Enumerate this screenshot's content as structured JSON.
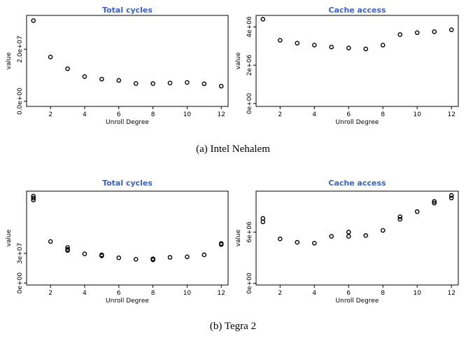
{
  "chart_data": [
    {
      "type": "scatter",
      "title": "Total cycles",
      "xlabel": "Unroll Degree",
      "ylabel": "value",
      "xlim": [
        0.6,
        12.4
      ],
      "ylim": [
        -2000000.0,
        33000000.0
      ],
      "xticks": [
        2,
        4,
        6,
        8,
        10,
        12
      ],
      "yticks": [
        0,
        20000000
      ],
      "yticklabels": [
        "0.0e+00",
        "2.0e+07"
      ],
      "points": [
        [
          1,
          31000000
        ],
        [
          2,
          17000000
        ],
        [
          3,
          12500000
        ],
        [
          4,
          9500000
        ],
        [
          5,
          8500000
        ],
        [
          6,
          8000000
        ],
        [
          7,
          6800000
        ],
        [
          8,
          6800000
        ],
        [
          9,
          7000000
        ],
        [
          10,
          7200000
        ],
        [
          11,
          6700000
        ],
        [
          12,
          5800000
        ]
      ]
    },
    {
      "type": "scatter",
      "title": "Cache access",
      "xlabel": "Unroll Degree",
      "ylabel": "value",
      "xlim": [
        0.6,
        12.4
      ],
      "ylim": [
        -150000.0,
        4600000.0
      ],
      "xticks": [
        2,
        4,
        6,
        8,
        10,
        12
      ],
      "yticks": [
        0,
        2000000,
        4000000
      ],
      "yticklabels": [
        "0e+00",
        "2e+06",
        "4e+06"
      ],
      "points": [
        [
          1,
          4400000
        ],
        [
          2,
          3300000
        ],
        [
          3,
          3150000
        ],
        [
          4,
          3050000
        ],
        [
          5,
          2950000
        ],
        [
          6,
          2900000
        ],
        [
          7,
          2850000
        ],
        [
          8,
          3050000
        ],
        [
          9,
          3600000
        ],
        [
          10,
          3700000
        ],
        [
          11,
          3750000
        ],
        [
          12,
          3850000
        ]
      ]
    },
    {
      "type": "scatter",
      "title": "Total cycles",
      "xlabel": "Unroll Degree",
      "ylabel": "value",
      "xlim": [
        0.6,
        12.4
      ],
      "ylim": [
        -2000000.0,
        93000000.0
      ],
      "xticks": [
        2,
        4,
        6,
        8,
        10,
        12
      ],
      "yticks": [
        0,
        30000000
      ],
      "yticklabels": [
        "0e+00",
        "3e+07"
      ],
      "points": [
        [
          1,
          84000000
        ],
        [
          1,
          86000000
        ],
        [
          1,
          88000000
        ],
        [
          2,
          42000000
        ],
        [
          3,
          36000000
        ],
        [
          3,
          34000000
        ],
        [
          3,
          33000000
        ],
        [
          4,
          29500000
        ],
        [
          5,
          28500000
        ],
        [
          5,
          27500000
        ],
        [
          6,
          25500000
        ],
        [
          7,
          24000000
        ],
        [
          8,
          24500000
        ],
        [
          8,
          23500000
        ],
        [
          9,
          26000000
        ],
        [
          10,
          26500000
        ],
        [
          11,
          28500000
        ],
        [
          12,
          39000000
        ],
        [
          12,
          40000000
        ]
      ]
    },
    {
      "type": "scatter",
      "title": "Cache access",
      "xlabel": "Unroll Degree",
      "ylabel": "value",
      "xlim": [
        0.6,
        12.4
      ],
      "ylim": [
        -200000.0,
        10800000.0
      ],
      "xticks": [
        2,
        4,
        6,
        8,
        10,
        12
      ],
      "yticks": [
        0,
        6000000
      ],
      "yticklabels": [
        "0e+00",
        "6e+06"
      ],
      "points": [
        [
          1,
          7200000
        ],
        [
          1,
          7600000
        ],
        [
          2,
          5200000
        ],
        [
          3,
          4800000
        ],
        [
          4,
          4700000
        ],
        [
          5,
          5500000
        ],
        [
          6,
          5500000
        ],
        [
          6,
          6000000
        ],
        [
          7,
          5600000
        ],
        [
          8,
          6200000
        ],
        [
          9,
          7500000
        ],
        [
          9,
          7800000
        ],
        [
          10,
          8400000
        ],
        [
          11,
          9400000
        ],
        [
          11,
          9600000
        ],
        [
          12,
          10000000
        ],
        [
          12,
          10300000
        ]
      ]
    }
  ],
  "captions": {
    "a": "(a) Intel Nehalem",
    "b": "(b) Tegra 2"
  }
}
